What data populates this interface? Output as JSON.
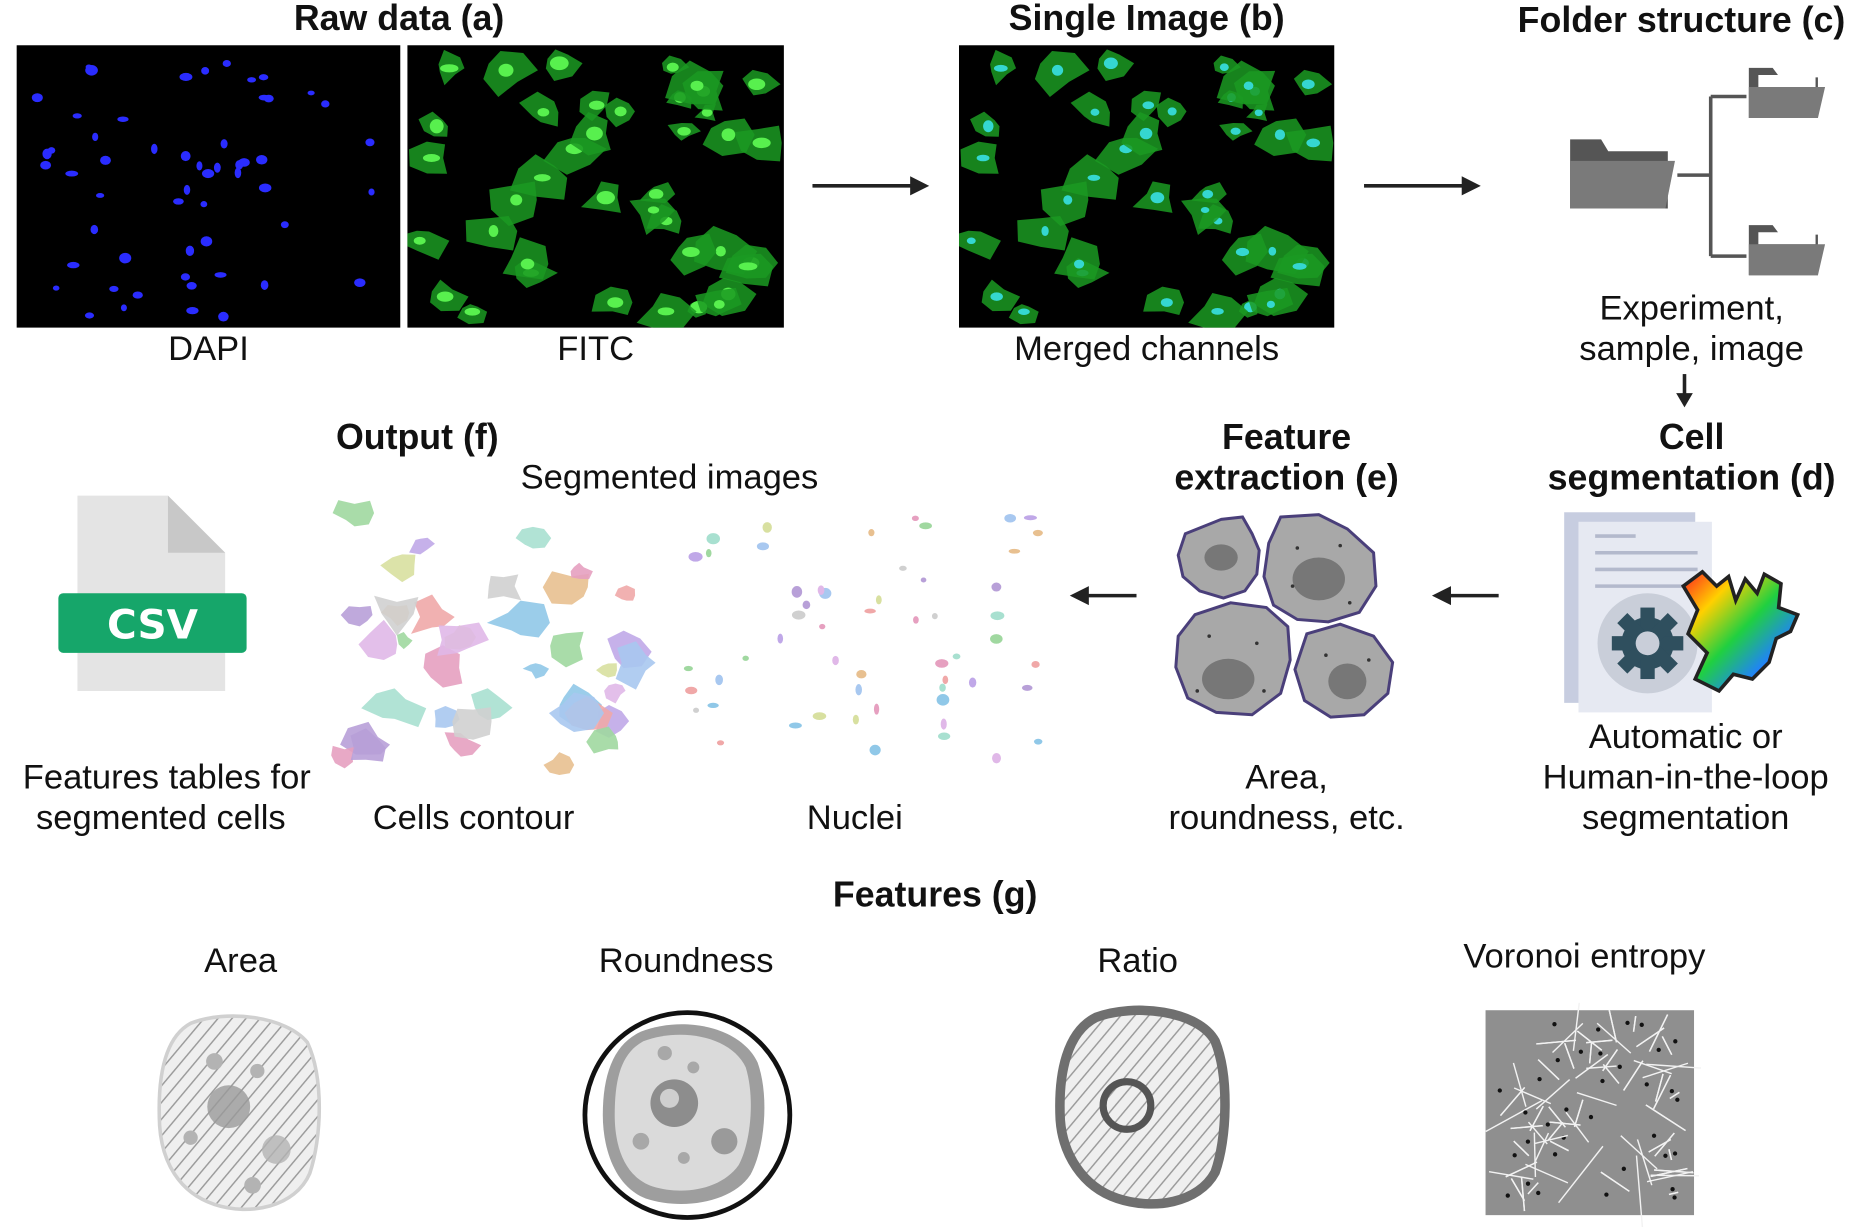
{
  "raw": {
    "title": "Raw data (a)",
    "dapi": "DAPI",
    "fitc": "FITC"
  },
  "single": {
    "title": "Single Image (b)",
    "label": "Merged channels"
  },
  "folder": {
    "title": "Folder structure (c)",
    "label_1": "Experiment,",
    "label_2": "sample, image"
  },
  "segmentation": {
    "title_1": "Cell",
    "title_2": "segmentation (d)",
    "label_1": "Automatic or",
    "label_2": "Human-in-the-loop",
    "label_3": "segmentation"
  },
  "extraction": {
    "title_1": "Feature",
    "title_2": "extraction (e)",
    "label_1": "Area,",
    "label_2": "roundness, etc."
  },
  "output": {
    "title": "Output (f)",
    "segmented": "Segmented images",
    "csv": "CSV",
    "tables_1": "Features tables for",
    "tables_2": "segmented cells",
    "contour": "Cells contour",
    "nuclei": "Nuclei"
  },
  "features": {
    "title": "Features (g)",
    "items": [
      "Area",
      "Roundness",
      "Ratio",
      "Voronoi entropy"
    ]
  },
  "colors": {
    "dapi": "#2a2cff",
    "fitc": "#22c42a",
    "csv_green": "#16a66a",
    "cell_grey": "#9a9a9a",
    "outline_purple": "#4a3f7a"
  }
}
